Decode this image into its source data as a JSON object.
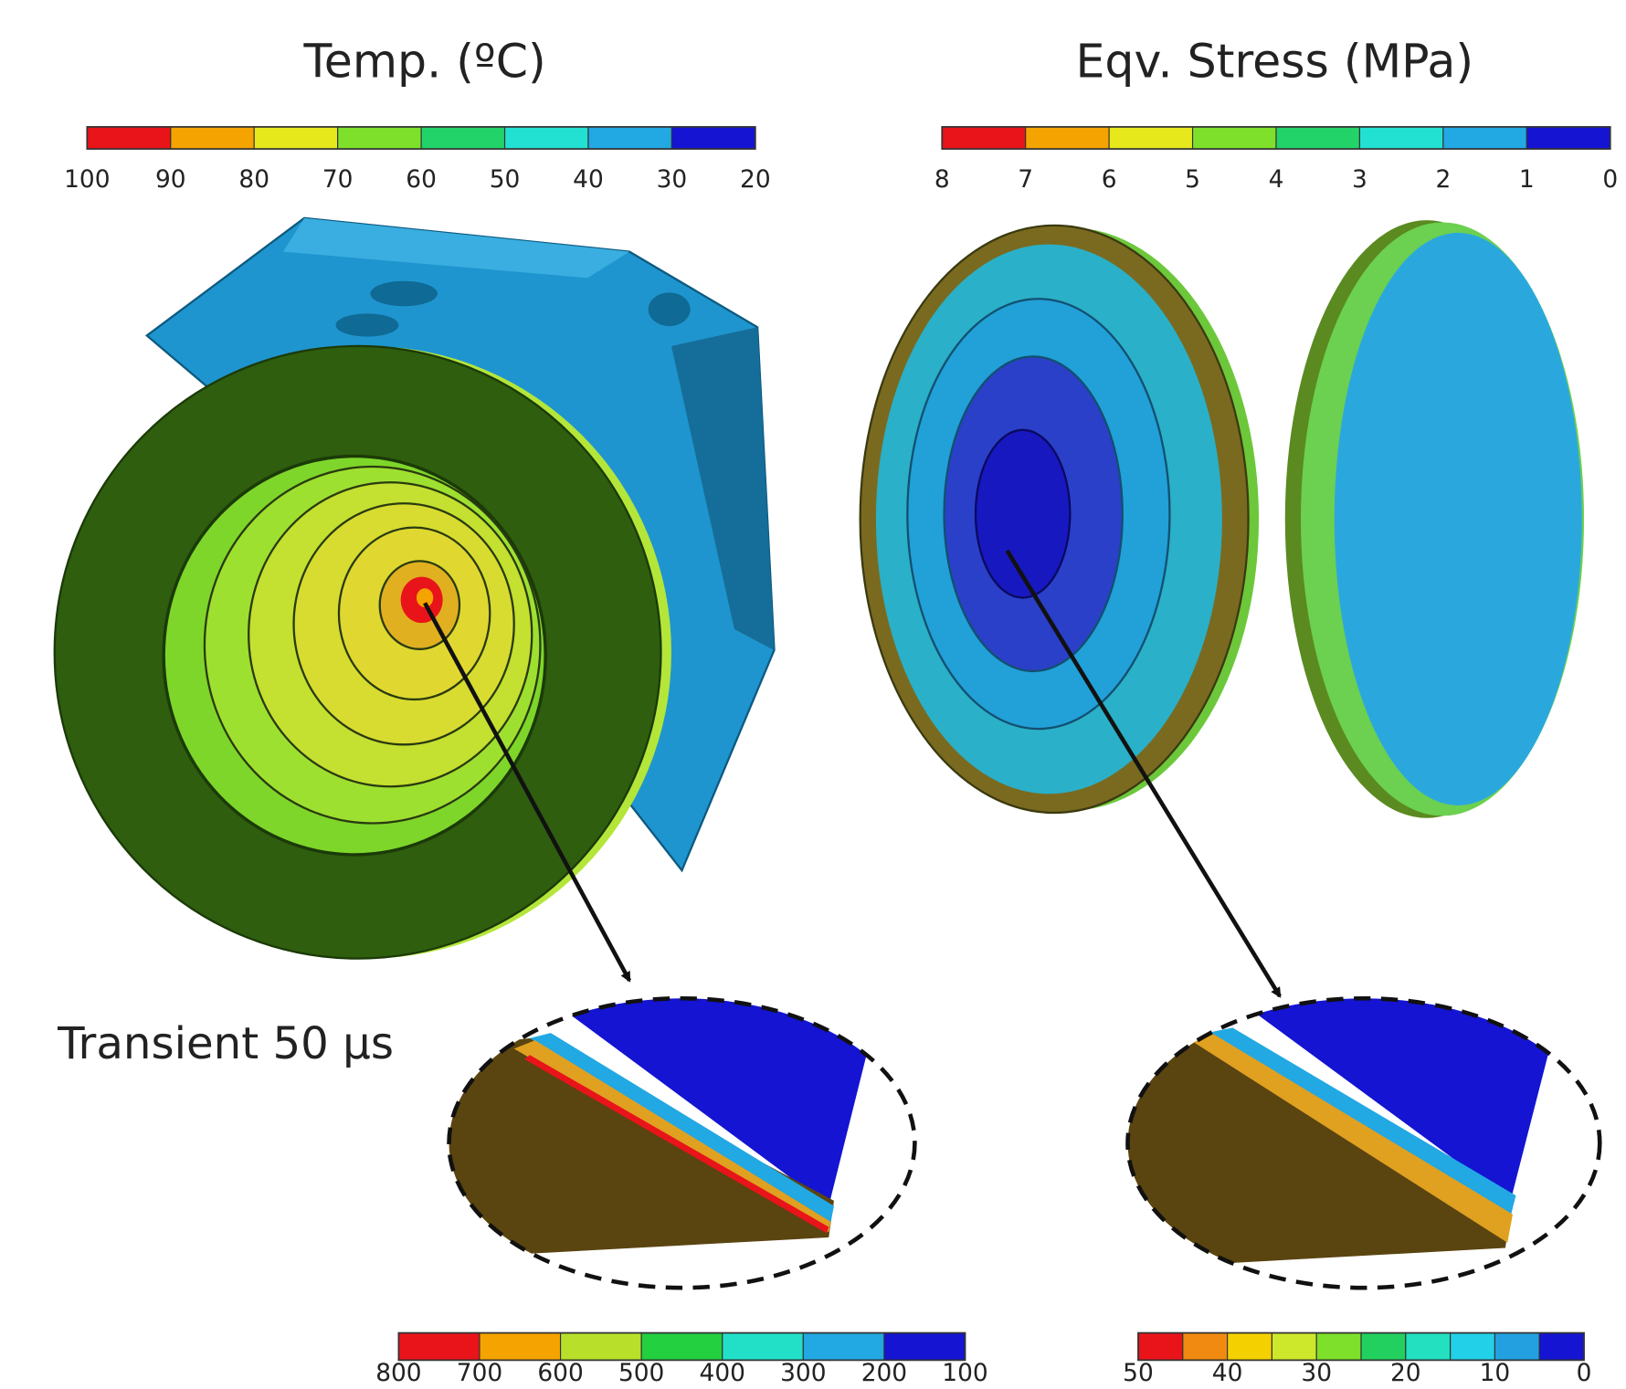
{
  "panels": [
    {
      "title": "Temp. (ºC)",
      "colorbar": {
        "colors": [
          "#e8141a",
          "#f5a300",
          "#e6e81c",
          "#7ee02a",
          "#22d36a",
          "#22e0d2",
          "#22a8e2",
          "#1414d2"
        ],
        "labels": [
          100,
          90,
          80,
          70,
          60,
          50,
          40,
          30,
          20
        ]
      }
    },
    {
      "title": "Eqv. Stress (MPa)",
      "colorbar": {
        "colors": [
          "#e8141a",
          "#f5a300",
          "#e6e81c",
          "#7ee02a",
          "#22d36a",
          "#22e0d2",
          "#22a8e2",
          "#1414d2"
        ],
        "labels": [
          8,
          7,
          6,
          5,
          4,
          3,
          2,
          1,
          0
        ]
      }
    }
  ],
  "annotation": "Transient 50 µs",
  "zoom_colorbars": [
    {
      "colors": [
        "#e8141a",
        "#f5a300",
        "#b8e02a",
        "#22d040",
        "#22e0c8",
        "#22a8e2",
        "#1414d2"
      ],
      "labels": [
        800,
        700,
        600,
        500,
        400,
        300,
        200,
        100
      ]
    },
    {
      "colors": [
        "#e8141a",
        "#f08a10",
        "#f5d000",
        "#cde82a",
        "#7ee02a",
        "#22d060",
        "#22e0c0",
        "#22d0e8",
        "#22a0e0",
        "#1414d2"
      ],
      "labels": [
        50,
        40,
        30,
        20,
        10,
        0
      ]
    }
  ]
}
